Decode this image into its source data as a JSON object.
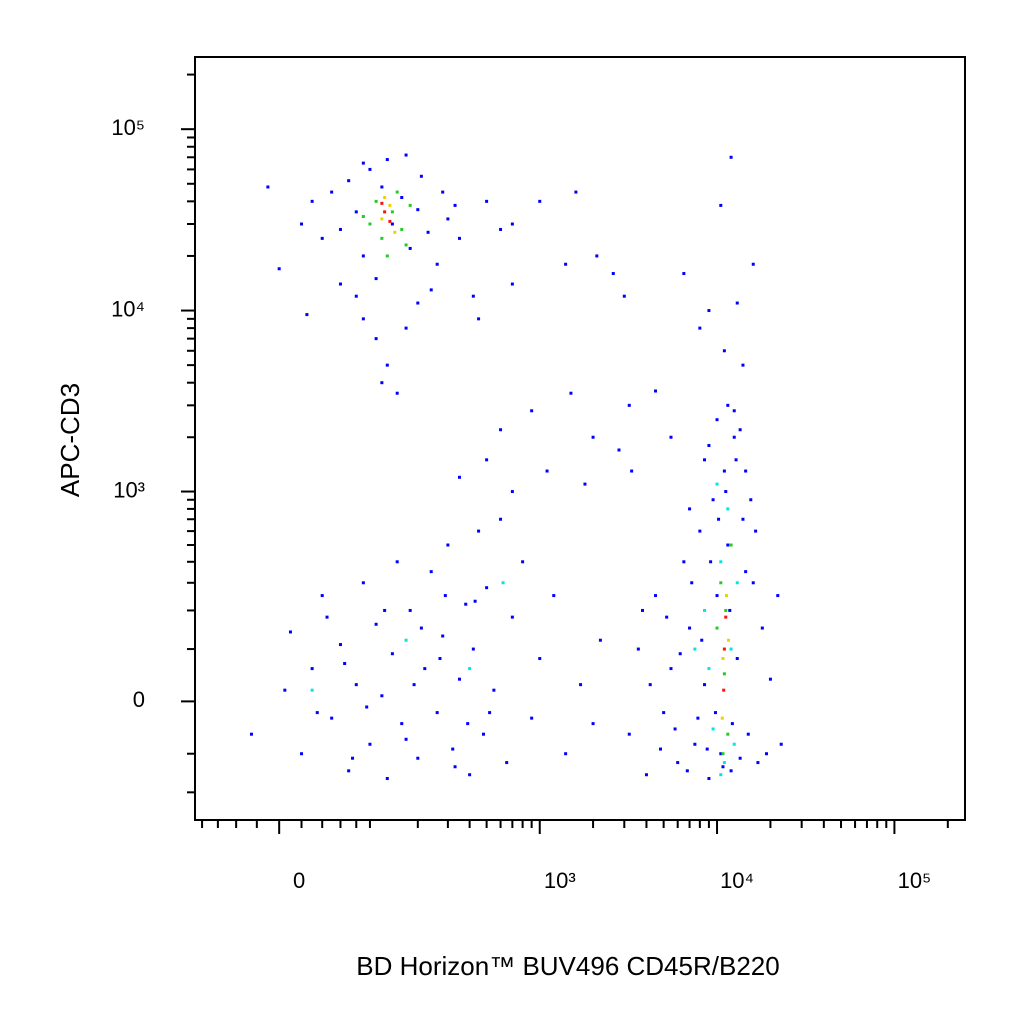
{
  "chart_data": {
    "type": "scatter",
    "xlabel": "BD Horizon™ BUV496 CD45R/B220",
    "ylabel": "APC-CD3",
    "xscale": "logicle",
    "yscale": "logicle",
    "xlim": [
      -90,
      250000
    ],
    "ylim": [
      -300,
      250000
    ],
    "xticks": [
      0,
      {
        "value": 1000,
        "label": "10³"
      },
      {
        "value": 10000,
        "label": "10⁴"
      },
      {
        "value": 100000,
        "label": "10⁵"
      }
    ],
    "yticks": [
      0,
      {
        "value": 1000,
        "label": "10³"
      },
      {
        "value": 10000,
        "label": "10⁴"
      },
      {
        "value": 100000,
        "label": "10⁵"
      }
    ],
    "xminorticks": [
      -80,
      -60,
      -40,
      -20,
      20,
      40,
      60,
      80,
      100,
      200,
      300,
      400,
      500,
      600,
      700,
      800,
      900,
      2000,
      3000,
      4000,
      5000,
      6000,
      7000,
      8000,
      9000,
      20000,
      30000,
      40000,
      50000,
      60000,
      70000,
      80000,
      90000,
      200000
    ],
    "yminorticks": [
      -200,
      -100,
      100,
      200,
      300,
      400,
      500,
      600,
      700,
      800,
      900,
      2000,
      3000,
      4000,
      5000,
      6000,
      7000,
      8000,
      9000,
      20000,
      30000,
      40000,
      50000,
      60000,
      70000,
      80000,
      90000,
      200000
    ],
    "series": [
      {
        "color": "#0000ff",
        "x": [
          30,
          50,
          60,
          70,
          80,
          90,
          100,
          110,
          120,
          140,
          160,
          180,
          200,
          230,
          260,
          300,
          350,
          420,
          500,
          60,
          90,
          110,
          130,
          150,
          120,
          170,
          200,
          240,
          80,
          40,
          20,
          -10,
          0,
          25,
          130,
          170,
          210,
          90,
          280,
          330,
          600,
          1600,
          1000,
          700,
          2100,
          2600,
          1400,
          700,
          450,
          3000,
          6500,
          9000,
          8000,
          10500,
          12000,
          16000,
          13000,
          11000,
          14000,
          4500,
          3200,
          1500,
          900,
          600,
          2000,
          2800,
          5500,
          8500,
          500,
          350,
          1100,
          1800,
          700,
          3300,
          -25,
          5,
          10,
          20,
          30,
          40,
          50,
          60,
          70,
          80,
          90,
          100,
          110,
          120,
          130,
          140,
          150,
          160,
          180,
          200,
          220,
          240,
          260,
          280,
          300,
          320,
          350,
          380,
          400,
          420,
          450,
          480,
          500,
          550,
          600,
          650,
          700,
          800,
          900,
          1000,
          1200,
          1400,
          1700,
          2000,
          2200,
          35,
          65,
          95,
          125,
          170,
          210,
          270,
          330,
          430,
          520,
          45,
          75,
          190,
          290,
          390,
          3200,
          3600,
          4000,
          4500,
          5000,
          5500,
          6000,
          6500,
          7000,
          7500,
          8000,
          8500,
          9000,
          9500,
          10000,
          10500,
          11000,
          11500,
          12000,
          12500,
          13000,
          14000,
          15000,
          16000,
          17000,
          18000,
          20000,
          22000,
          23000,
          4200,
          4800,
          5200,
          5800,
          6200,
          6800,
          7200,
          7800,
          8200,
          8800,
          9200,
          9800,
          10200,
          10800,
          11200,
          11800,
          12200,
          12800,
          13500,
          14500,
          15500,
          10000,
          11500,
          12500,
          9000,
          13500,
          14500,
          7000,
          16500,
          19000,
          3800
        ],
        "values": [
          40000,
          45000,
          28000,
          52000,
          35000,
          20000,
          60000,
          15000,
          48000,
          30000,
          42000,
          22000,
          36000,
          27000,
          18000,
          32000,
          25000,
          12000,
          40000,
          14000,
          9000,
          7000,
          5000,
          3500,
          4000,
          8000,
          11000,
          13000,
          12000,
          25000,
          30000,
          48000,
          17000,
          9500,
          68000,
          72000,
          55000,
          65000,
          45000,
          38000,
          28000,
          45000,
          40000,
          30000,
          20000,
          16000,
          18000,
          14000,
          9000,
          12000,
          16000,
          10000,
          8000,
          38000,
          70000,
          18000,
          11000,
          6000,
          5000,
          3600,
          3000,
          3500,
          2800,
          2200,
          2000,
          1700,
          2000,
          1500,
          1500,
          1200,
          1300,
          1100,
          1000,
          1300,
          -60,
          20,
          140,
          -100,
          60,
          250,
          -30,
          110,
          -140,
          30,
          300,
          -80,
          160,
          10,
          -160,
          90,
          400,
          -40,
          200,
          -110,
          60,
          350,
          -20,
          130,
          500,
          -90,
          40,
          220,
          -150,
          100,
          600,
          -60,
          280,
          20,
          700,
          -120,
          180,
          400,
          -30,
          80,
          250,
          -100,
          30,
          -40,
          120,
          -20,
          70,
          -10,
          200,
          -70,
          150,
          80,
          -130,
          230,
          -20,
          180,
          -110,
          30,
          250,
          -40,
          -60,
          100,
          -150,
          250,
          -20,
          60,
          -120,
          400,
          150,
          -80,
          600,
          30,
          -160,
          900,
          250,
          -100,
          1300,
          500,
          -140,
          2000,
          80,
          700,
          -60,
          300,
          -120,
          150,
          40,
          250,
          -80,
          30,
          -90,
          180,
          -50,
          90,
          -140,
          300,
          -30,
          120,
          -90,
          400,
          -20,
          700,
          -130,
          1000,
          200,
          -40,
          1500,
          -110,
          350,
          900,
          2500,
          3000,
          2800,
          1800,
          2200,
          1300,
          800,
          600,
          -100,
          200
        ]
      },
      {
        "color": "#00e5e5",
        "x": [
          170,
          400,
          620,
          30,
          8500,
          9500,
          10500,
          11000,
          12000,
          11500,
          10000,
          9000,
          13000,
          12500,
          7500,
          10500
        ],
        "values": [
          120,
          60,
          300,
          20,
          200,
          -50,
          400,
          -120,
          100,
          800,
          1100,
          60,
          300,
          -80,
          100,
          -150
        ]
      },
      {
        "color": "#22cc22",
        "x": [
          100,
          120,
          140,
          110,
          160,
          130,
          150,
          90,
          180,
          170,
          10000,
          11000,
          10500,
          11500,
          12000,
          10800,
          11200
        ],
        "values": [
          30000,
          25000,
          35000,
          40000,
          28000,
          20000,
          45000,
          33000,
          38000,
          23000,
          150,
          50,
          300,
          -60,
          500,
          -100,
          200
        ]
      },
      {
        "color": "#f0d000",
        "x": [
          120,
          135,
          145,
          125,
          10800,
          11300,
          10700,
          11600
        ],
        "values": [
          32000,
          38000,
          27000,
          42000,
          80,
          250,
          -30,
          120
        ]
      },
      {
        "color": "#ff1010",
        "x": [
          125,
          135,
          120,
          11000,
          10900,
          11200
        ],
        "values": [
          35000,
          31000,
          39000,
          100,
          20,
          180
        ]
      }
    ]
  }
}
